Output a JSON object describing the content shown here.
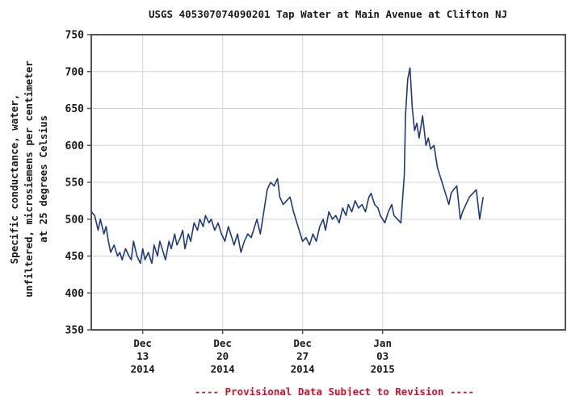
{
  "chart_data": {
    "type": "line",
    "title": "USGS 405307074090201 Tap Water at Main Avenue at Clifton NJ",
    "ylabel_lines": [
      "Specific conductance, water,",
      "unfiltered, microsiemens per centimeter",
      "at 25 degrees Celsius"
    ],
    "xlabel": "",
    "ylim": [
      350,
      750
    ],
    "yticks": [
      "350",
      "400",
      "450",
      "500",
      "550",
      "600",
      "650",
      "700",
      "750"
    ],
    "xlim_days_from_dec13": [
      -4.5,
      37
    ],
    "xticks": [
      {
        "day": 0,
        "lines": [
          "Dec",
          "13",
          "2014"
        ]
      },
      {
        "day": 7,
        "lines": [
          "Dec",
          "20",
          "2014"
        ]
      },
      {
        "day": 14,
        "lines": [
          "Dec",
          "27",
          "2014"
        ]
      },
      {
        "day": 21,
        "lines": [
          "Jan",
          "03",
          "2015"
        ]
      }
    ],
    "grid": true,
    "line_color": "#1f3a7a",
    "footnote": "---- Provisional Data Subject to Revision ----",
    "footnote_color": "#d0112b",
    "series": [
      {
        "x": [
          -4.5,
          -4.2,
          -3.9,
          -3.7,
          -3.4,
          -3.2,
          -3.0,
          -2.8,
          -2.5,
          -2.2,
          -2.0,
          -1.8,
          -1.5,
          -1.2,
          -1.0,
          -0.8,
          -0.5,
          -0.2,
          0.0,
          0.2,
          0.5,
          0.8,
          1.0,
          1.3,
          1.5,
          1.8,
          2.0,
          2.3,
          2.5,
          2.8,
          3.0,
          3.3,
          3.5,
          3.7,
          4.0,
          4.2,
          4.5,
          4.8,
          5.0,
          5.3,
          5.5,
          5.8,
          6.0,
          6.3,
          6.6,
          6.9,
          7.2,
          7.5,
          7.8,
          8.0,
          8.3,
          8.6,
          8.9,
          9.2,
          9.5,
          9.8,
          10.0,
          10.3,
          10.6,
          10.9,
          11.2,
          11.5,
          11.8,
          12.0,
          12.3,
          12.6,
          12.9,
          13.2,
          13.5,
          13.8,
          14.0,
          14.3,
          14.6,
          14.9,
          15.2,
          15.5,
          15.8,
          16.0,
          16.3,
          16.6,
          16.9,
          17.2,
          17.5,
          17.8,
          18.0,
          18.3,
          18.6,
          18.9,
          19.2,
          19.5,
          19.8,
          20.0,
          20.3,
          20.6,
          20.8,
          21.0,
          21.2,
          21.5,
          21.8,
          22.0,
          22.3,
          22.6,
          22.9,
          23.0,
          23.2,
          23.4,
          23.6,
          23.8,
          24.0,
          24.2,
          24.5,
          24.8,
          25.0,
          25.2,
          25.5,
          25.8,
          26.0,
          26.3,
          26.6,
          26.8,
          27.0,
          27.2,
          27.5,
          27.8,
          28.0,
          28.3,
          28.6,
          28.9,
          29.2,
          29.5,
          29.8
        ],
        "values": [
          510,
          505,
          485,
          500,
          480,
          490,
          470,
          455,
          465,
          450,
          455,
          445,
          460,
          450,
          445,
          470,
          450,
          440,
          460,
          445,
          455,
          440,
          465,
          450,
          470,
          455,
          445,
          470,
          460,
          480,
          465,
          475,
          485,
          460,
          480,
          470,
          495,
          485,
          500,
          490,
          505,
          495,
          500,
          485,
          495,
          480,
          470,
          490,
          475,
          465,
          480,
          455,
          470,
          480,
          475,
          490,
          500,
          480,
          510,
          540,
          550,
          545,
          555,
          530,
          520,
          525,
          530,
          510,
          495,
          480,
          470,
          475,
          465,
          480,
          470,
          490,
          500,
          485,
          510,
          500,
          505,
          495,
          515,
          505,
          520,
          510,
          525,
          515,
          520,
          510,
          530,
          535,
          520,
          515,
          505,
          500,
          495,
          510,
          520,
          505,
          500,
          495,
          560,
          640,
          690,
          705,
          650,
          620,
          630,
          610,
          640,
          600,
          610,
          595,
          600,
          570,
          560,
          545,
          530,
          520,
          535,
          540,
          545,
          500,
          510,
          520,
          530,
          535,
          540,
          500,
          530
        ],
        "name": ""
      }
    ]
  }
}
